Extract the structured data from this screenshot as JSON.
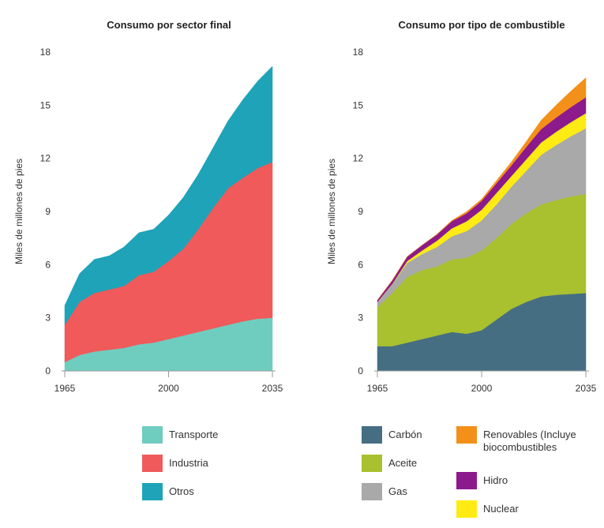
{
  "chart_data": [
    {
      "type": "area",
      "stacked": true,
      "title": "Consumo por sector final",
      "ylabel": "Miles de millones de pies",
      "xlabel": "",
      "xlim": [
        1965,
        2035
      ],
      "ylim": [
        0,
        18
      ],
      "xticks": [
        "1965",
        "2000",
        "2035"
      ],
      "yticks": [
        "0",
        "3",
        "6",
        "9",
        "12",
        "15",
        "18"
      ],
      "x": [
        1965,
        1970,
        1975,
        1980,
        1985,
        1990,
        1995,
        2000,
        2005,
        2010,
        2015,
        2020,
        2025,
        2030,
        2035
      ],
      "series": [
        {
          "name": "Transporte",
          "color": "#6fcdc0",
          "values": [
            0.5,
            0.9,
            1.1,
            1.2,
            1.3,
            1.5,
            1.6,
            1.8,
            2.0,
            2.2,
            2.4,
            2.6,
            2.8,
            2.95,
            3.0
          ]
        },
        {
          "name": "Industria",
          "color": "#f05a5a",
          "values": [
            2.1,
            3.0,
            3.3,
            3.4,
            3.5,
            3.9,
            4.0,
            4.4,
            4.9,
            5.8,
            6.8,
            7.7,
            8.1,
            8.5,
            8.8
          ]
        },
        {
          "name": "Otros",
          "color": "#1ea3b8",
          "values": [
            1.1,
            1.6,
            1.9,
            1.9,
            2.2,
            2.4,
            2.4,
            2.6,
            2.9,
            3.1,
            3.4,
            3.8,
            4.4,
            4.9,
            5.4
          ]
        }
      ]
    },
    {
      "type": "area",
      "stacked": true,
      "title": "Consumo por tipo de combustible",
      "ylabel": "Miles de millones de pies",
      "xlabel": "",
      "xlim": [
        1965,
        2035
      ],
      "ylim": [
        0,
        18
      ],
      "xticks": [
        "1965",
        "2000",
        "2035"
      ],
      "yticks": [
        "0",
        "3",
        "6",
        "9",
        "12",
        "15",
        "18"
      ],
      "x": [
        1965,
        1970,
        1975,
        1980,
        1985,
        1990,
        1995,
        2000,
        2005,
        2010,
        2015,
        2020,
        2025,
        2030,
        2035
      ],
      "series": [
        {
          "name": "Carbón",
          "color": "#456e83",
          "values": [
            1.4,
            1.4,
            1.6,
            1.8,
            2.0,
            2.2,
            2.1,
            2.3,
            2.9,
            3.5,
            3.9,
            4.2,
            4.3,
            4.35,
            4.4
          ]
        },
        {
          "name": "Aceite",
          "color": "#a9c02f",
          "values": [
            2.2,
            3.0,
            3.7,
            3.9,
            3.9,
            4.1,
            4.3,
            4.5,
            4.6,
            4.8,
            5.0,
            5.2,
            5.35,
            5.5,
            5.6
          ]
        },
        {
          "name": "Gas",
          "color": "#a9a9a9",
          "values": [
            0.3,
            0.5,
            0.8,
            0.9,
            1.1,
            1.3,
            1.5,
            1.7,
            1.9,
            2.1,
            2.4,
            2.8,
            3.1,
            3.4,
            3.7
          ]
        },
        {
          "name": "Nuclear",
          "color": "#ffeb14",
          "values": [
            0.0,
            0.02,
            0.1,
            0.2,
            0.35,
            0.45,
            0.55,
            0.6,
            0.65,
            0.6,
            0.65,
            0.7,
            0.75,
            0.8,
            0.85
          ]
        },
        {
          "name": "Hidro",
          "color": "#8c1a8c",
          "values": [
            0.1,
            0.2,
            0.25,
            0.3,
            0.35,
            0.4,
            0.45,
            0.5,
            0.55,
            0.6,
            0.7,
            0.75,
            0.8,
            0.85,
            0.9
          ]
        },
        {
          "name": "Renovables (Incluye biocombustibles",
          "color": "#f39019",
          "values": [
            0.0,
            0.0,
            0.0,
            0.0,
            0.02,
            0.05,
            0.1,
            0.1,
            0.15,
            0.2,
            0.3,
            0.5,
            0.7,
            0.9,
            1.1
          ]
        }
      ]
    }
  ],
  "legends": [
    {
      "items": [
        {
          "label": "Transporte",
          "color": "#6fcdc0"
        },
        {
          "label": "Industria",
          "color": "#f05a5a"
        },
        {
          "label": "Otros",
          "color": "#1ea3b8"
        }
      ]
    },
    {
      "items": [
        {
          "label": "Carbón",
          "color": "#456e83"
        },
        {
          "label": "Aceite",
          "color": "#a9c02f"
        },
        {
          "label": "Gas",
          "color": "#a9a9a9"
        },
        {
          "label": "Renovables (Incluye\nbiocombustibles",
          "color": "#f39019"
        },
        {
          "label": "Hidro",
          "color": "#8c1a8c"
        },
        {
          "label": "Nuclear",
          "color": "#ffeb14"
        }
      ]
    }
  ]
}
